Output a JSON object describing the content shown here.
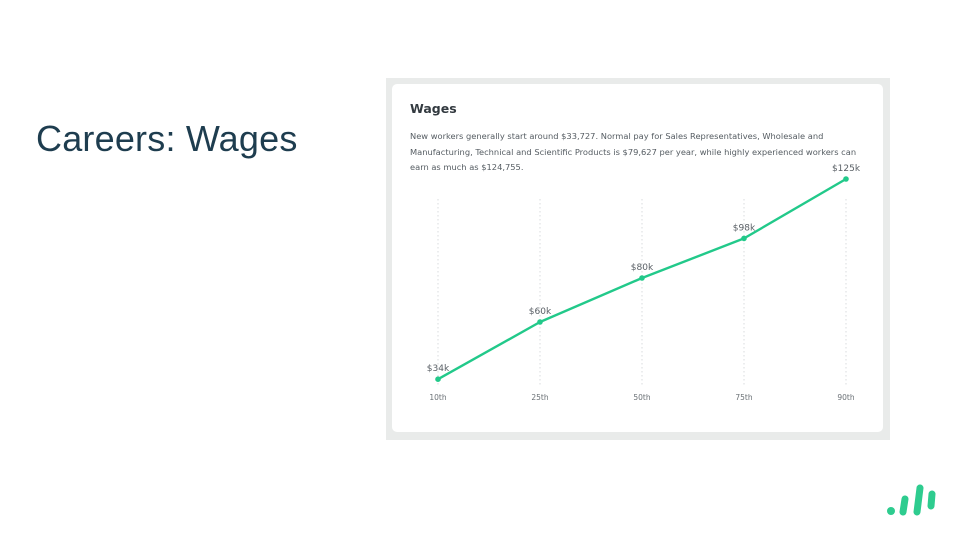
{
  "slide": {
    "title": "Careers: Wages"
  },
  "card": {
    "title": "Wages",
    "description": "New workers generally start around $33,727. Normal pay for Sales Representatives, Wholesale and Manufacturing, Technical and Scientific Products is $79,627 per year, while highly experienced workers can earn as much as $124,755."
  },
  "colors": {
    "title_text": "#1e3d4f",
    "line": "#22c98a",
    "logo": "#2ecc8f",
    "frame": "#e9ebea"
  },
  "logo": {
    "icon": "bar-signal-logo-icon"
  },
  "chart_data": {
    "type": "line",
    "title": "",
    "xlabel": "",
    "ylabel": "",
    "categories": [
      "10th",
      "25th",
      "50th",
      "75th",
      "90th"
    ],
    "series": [
      {
        "values": [
          34,
          60,
          80,
          98,
          125
        ],
        "labels": [
          "$34k",
          "$60k",
          "$80k",
          "$98k",
          "$125k"
        ]
      }
    ],
    "ylim": [
      0,
      145
    ],
    "grid": "vertical dotted",
    "legend": "none"
  }
}
